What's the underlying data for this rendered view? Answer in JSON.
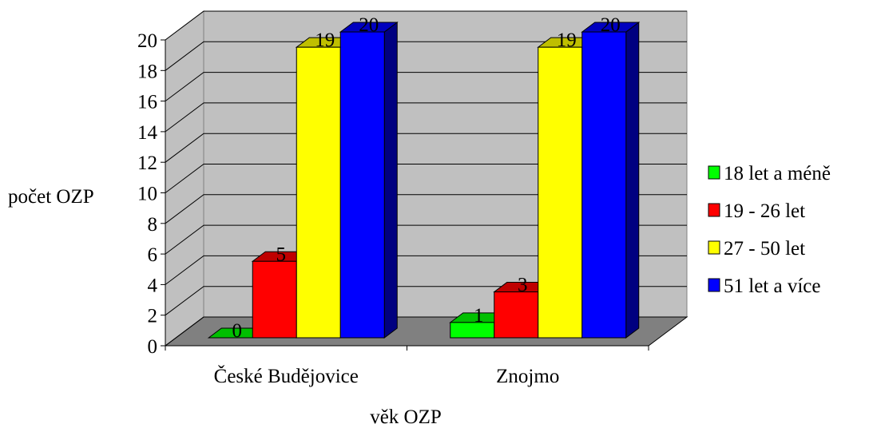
{
  "chart_data": {
    "type": "bar3d",
    "xlabel": "věk OZP",
    "ylabel": "počet OZP",
    "categories": [
      "České Budějovice",
      "Znojmo"
    ],
    "series": [
      {
        "name": "18 let a méně",
        "color": "#00ff00",
        "values": [
          0,
          1
        ]
      },
      {
        "name": "19 - 26 let",
        "color": "#ff0000",
        "values": [
          5,
          3
        ]
      },
      {
        "name": "27 - 50 let",
        "color": "#ffff00",
        "values": [
          19,
          19
        ]
      },
      {
        "name": "51 let a více",
        "color": "#0000ff",
        "values": [
          20,
          20
        ]
      }
    ],
    "ylim": [
      0,
      20
    ],
    "yticks": [
      0,
      2,
      4,
      6,
      8,
      10,
      12,
      14,
      16,
      18,
      20
    ],
    "grid": true,
    "legend": "right"
  }
}
